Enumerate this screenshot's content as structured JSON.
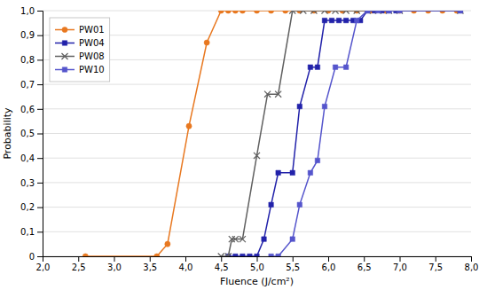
{
  "chart_data": {
    "type": "line",
    "xlabel": "Fluence (J/cm²)",
    "ylabel": "Probability",
    "xlim": [
      2.0,
      8.0
    ],
    "ylim": [
      0.0,
      1.0
    ],
    "xticks": [
      {
        "value": 2.0,
        "label": "2,0"
      },
      {
        "value": 2.5,
        "label": "2,5"
      },
      {
        "value": 3.0,
        "label": "3,0"
      },
      {
        "value": 3.5,
        "label": "3,5"
      },
      {
        "value": 4.0,
        "label": "4,0"
      },
      {
        "value": 4.5,
        "label": "4,5"
      },
      {
        "value": 5.0,
        "label": "5,0"
      },
      {
        "value": 5.5,
        "label": "5,5"
      },
      {
        "value": 6.0,
        "label": "6,0"
      },
      {
        "value": 6.5,
        "label": "6,5"
      },
      {
        "value": 7.0,
        "label": "7,0"
      },
      {
        "value": 7.5,
        "label": "7,5"
      },
      {
        "value": 8.0,
        "label": "8,0"
      }
    ],
    "yticks": [
      0,
      {
        "value": 0.1,
        "label": "0,1"
      },
      {
        "value": 0.2,
        "label": "0,2"
      },
      {
        "value": 0.3,
        "label": "0,3"
      },
      {
        "value": 0.4,
        "label": "0,4"
      },
      {
        "value": 0.5,
        "label": "0,5"
      },
      {
        "value": 0.6,
        "label": "0,6"
      },
      {
        "value": 0.7,
        "label": "0,7"
      },
      {
        "value": 0.8,
        "label": "0,8"
      },
      {
        "value": 0.9,
        "label": "0,9"
      },
      {
        "value": 1.0,
        "label": "1,0"
      }
    ],
    "grid": "y",
    "legend": "upper left",
    "series": [
      {
        "name": "PW01",
        "color": "#E87820",
        "marker": "circle",
        "x": [
          2.6,
          3.6,
          3.75,
          4.05,
          4.3,
          4.5,
          4.6,
          4.7,
          4.8,
          5.0,
          5.2,
          5.4,
          5.6,
          5.8,
          6.0,
          6.2,
          6.4,
          6.6,
          6.8,
          7.0,
          7.2,
          7.4,
          7.6,
          7.8
        ],
        "values": [
          0.0,
          0.0,
          0.05,
          0.53,
          0.87,
          1.0,
          1.0,
          1.0,
          1.0,
          1.0,
          1.0,
          1.0,
          1.0,
          1.0,
          1.0,
          1.0,
          1.0,
          1.0,
          1.0,
          1.0,
          1.0,
          1.0,
          1.0,
          1.0
        ]
      },
      {
        "name": "PW04",
        "color": "#2222AA",
        "marker": "square",
        "x": [
          4.6,
          4.7,
          4.8,
          4.9,
          5.0,
          5.1,
          5.2,
          5.3,
          5.5,
          5.6,
          5.75,
          5.85,
          5.95,
          6.05,
          6.15,
          6.25,
          6.35,
          6.45,
          6.55,
          6.65,
          6.75,
          6.85,
          6.95,
          7.85
        ],
        "values": [
          0.0,
          0.0,
          0.0,
          0.0,
          0.0,
          0.07,
          0.21,
          0.34,
          0.34,
          0.61,
          0.77,
          0.77,
          0.96,
          0.96,
          0.96,
          0.96,
          0.96,
          0.96,
          1.0,
          1.0,
          1.0,
          1.0,
          1.0,
          1.0
        ]
      },
      {
        "name": "PW08",
        "color": "#606060",
        "marker": "x",
        "x": [
          4.5,
          4.6,
          4.65,
          4.7,
          4.8,
          5.0,
          5.15,
          5.3,
          5.5,
          5.65,
          5.8,
          5.95,
          6.1,
          6.25,
          6.4,
          6.55,
          6.7,
          6.85,
          7.0,
          7.85
        ],
        "values": [
          0.0,
          0.0,
          0.07,
          0.07,
          0.07,
          0.41,
          0.66,
          0.66,
          1.0,
          1.0,
          1.0,
          1.0,
          1.0,
          1.0,
          1.0,
          1.0,
          1.0,
          1.0,
          1.0,
          1.0
        ]
      },
      {
        "name": "PW10",
        "color": "#5555CC",
        "marker": "square",
        "x": [
          5.2,
          5.3,
          5.5,
          5.6,
          5.75,
          5.85,
          5.95,
          6.1,
          6.25,
          6.4,
          6.55,
          6.7,
          6.85,
          7.0,
          7.85
        ],
        "values": [
          0.0,
          0.0,
          0.07,
          0.21,
          0.34,
          0.39,
          0.61,
          0.77,
          0.77,
          0.96,
          1.0,
          1.0,
          1.0,
          1.0,
          1.0
        ]
      }
    ]
  }
}
